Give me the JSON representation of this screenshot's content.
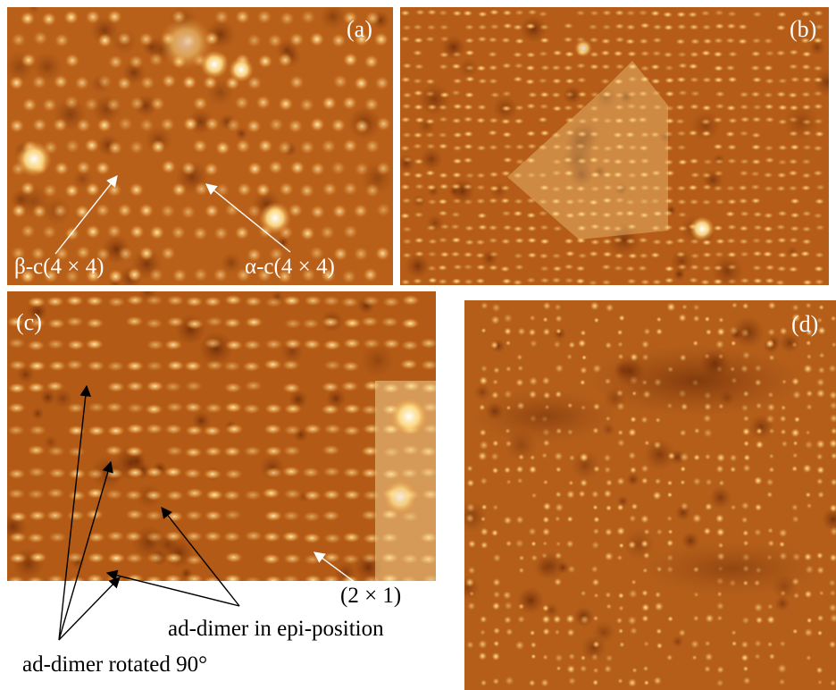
{
  "panels": {
    "a": {
      "label": "(a)",
      "annotations": {
        "beta": "β-c(4 × 4)",
        "alpha": "α-c(4 × 4)"
      }
    },
    "b": {
      "label": "(b)"
    },
    "c": {
      "label": "(c)",
      "annotations": {
        "two_by_one": "(2 × 1)",
        "epi": "ad-dimer in epi-position",
        "rotated": "ad-dimer rotated 90°"
      }
    },
    "d": {
      "label": "(d)"
    }
  },
  "colors": {
    "stm_dark": "#6b2a05",
    "stm_mid": "#c46a1c",
    "stm_bright": "#ffe9a8",
    "annotation_white": "#ffffff",
    "annotation_black": "#000000"
  }
}
